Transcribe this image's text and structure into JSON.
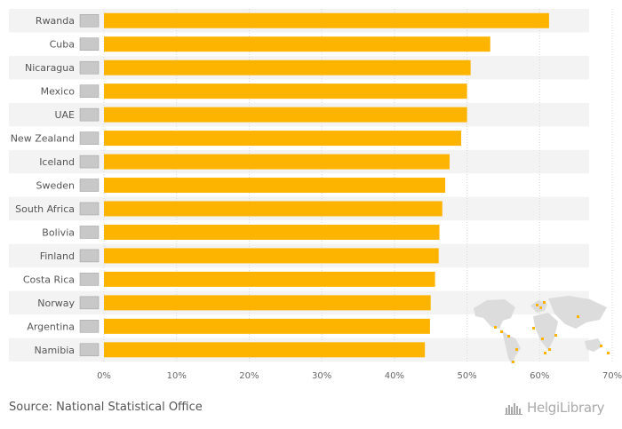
{
  "chart_data": {
    "type": "bar",
    "orientation": "horizontal",
    "title": "",
    "xlabel": "",
    "ylabel": "",
    "categories": [
      "Rwanda",
      "Cuba",
      "Nicaragua",
      "Mexico",
      "UAE",
      "New Zealand",
      "Iceland",
      "Sweden",
      "South Africa",
      "Bolivia",
      "Finland",
      "Costa Rica",
      "Norway",
      "Argentina",
      "Namibia"
    ],
    "values": [
      61.3,
      53.2,
      50.5,
      50.0,
      50.0,
      49.2,
      47.6,
      47.0,
      46.6,
      46.2,
      46.1,
      45.6,
      45.0,
      44.9,
      44.2
    ],
    "xlim": [
      0,
      70
    ],
    "xticks": [
      0,
      10,
      20,
      30,
      40,
      50,
      60,
      70
    ],
    "xtick_labels": [
      "0%",
      "10%",
      "20%",
      "30%",
      "40%",
      "50%",
      "60%",
      "70%"
    ],
    "grid": true,
    "bar_color": "#FDB400"
  },
  "source": "Source: National Statistical Office",
  "brand": "HelgiLibrary"
}
